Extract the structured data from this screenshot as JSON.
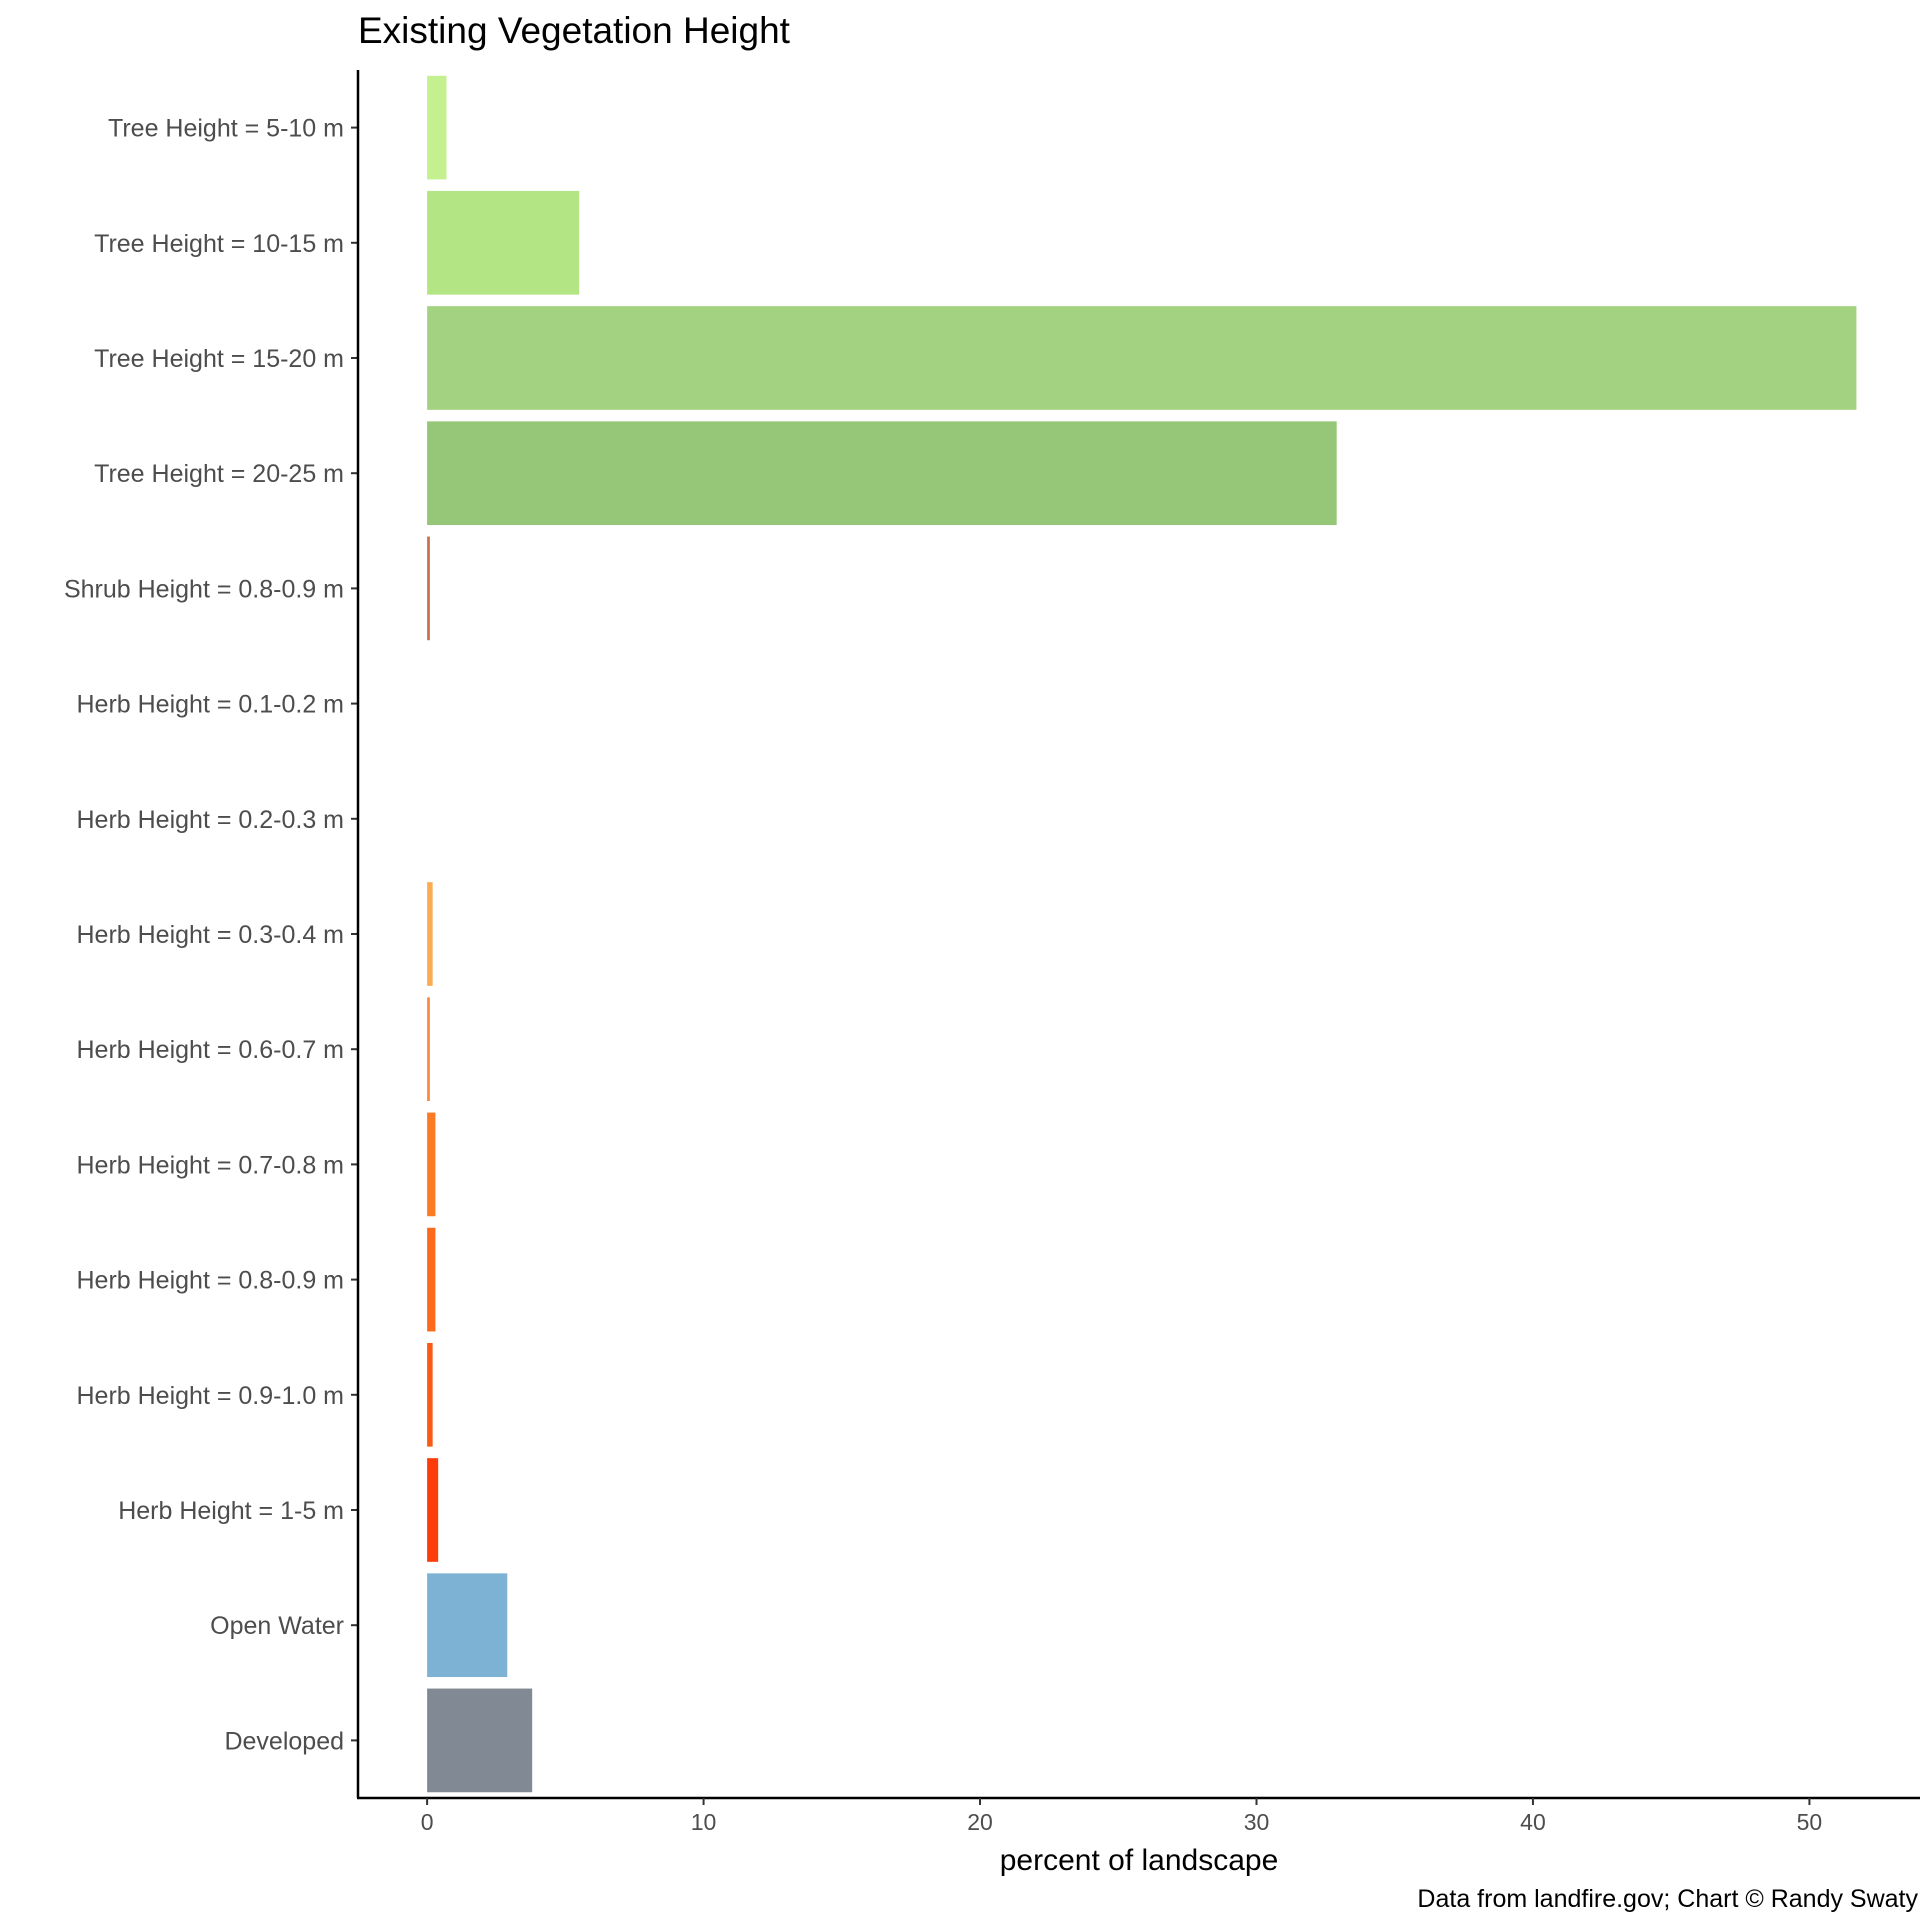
{
  "chart_data": {
    "type": "bar",
    "orientation": "horizontal",
    "title": "Existing Vegetation Height",
    "xlabel": "percent of landscape",
    "ylabel": "",
    "caption": "Data from landfire.gov; Chart © Randy Swaty",
    "xlim": [
      -2.5,
      54
    ],
    "xticks": [
      0,
      10,
      20,
      30,
      40,
      50
    ],
    "grid": false,
    "categories": [
      "Tree Height = 5-10 m",
      "Tree Height = 10-15 m",
      "Tree Height = 15-20 m",
      "Tree Height = 20-25 m",
      "Shrub Height = 0.8-0.9 m",
      "Herb Height = 0.1-0.2 m",
      "Herb Height = 0.2-0.3 m",
      "Herb Height = 0.3-0.4 m",
      "Herb Height = 0.6-0.7 m",
      "Herb Height = 0.7-0.8 m",
      "Herb Height = 0.8-0.9 m",
      "Herb Height = 0.9-1.0 m",
      "Herb Height = 1-5 m",
      "Open Water",
      "Developed"
    ],
    "values": [
      0.7,
      5.5,
      51.7,
      32.9,
      0.1,
      0.0,
      0.0,
      0.2,
      0.1,
      0.3,
      0.3,
      0.2,
      0.4,
      2.9,
      3.8
    ],
    "colors": [
      "#c4f08f",
      "#b3e585",
      "#a3d380",
      "#96c677",
      "#c9714e",
      "#ffe0b0",
      "#ffd090",
      "#fbac52",
      "#fb8a3b",
      "#fd7a24",
      "#fc6a1c",
      "#fc5a14",
      "#fd3c0c",
      "#7eb2d5",
      "#818a94"
    ]
  }
}
